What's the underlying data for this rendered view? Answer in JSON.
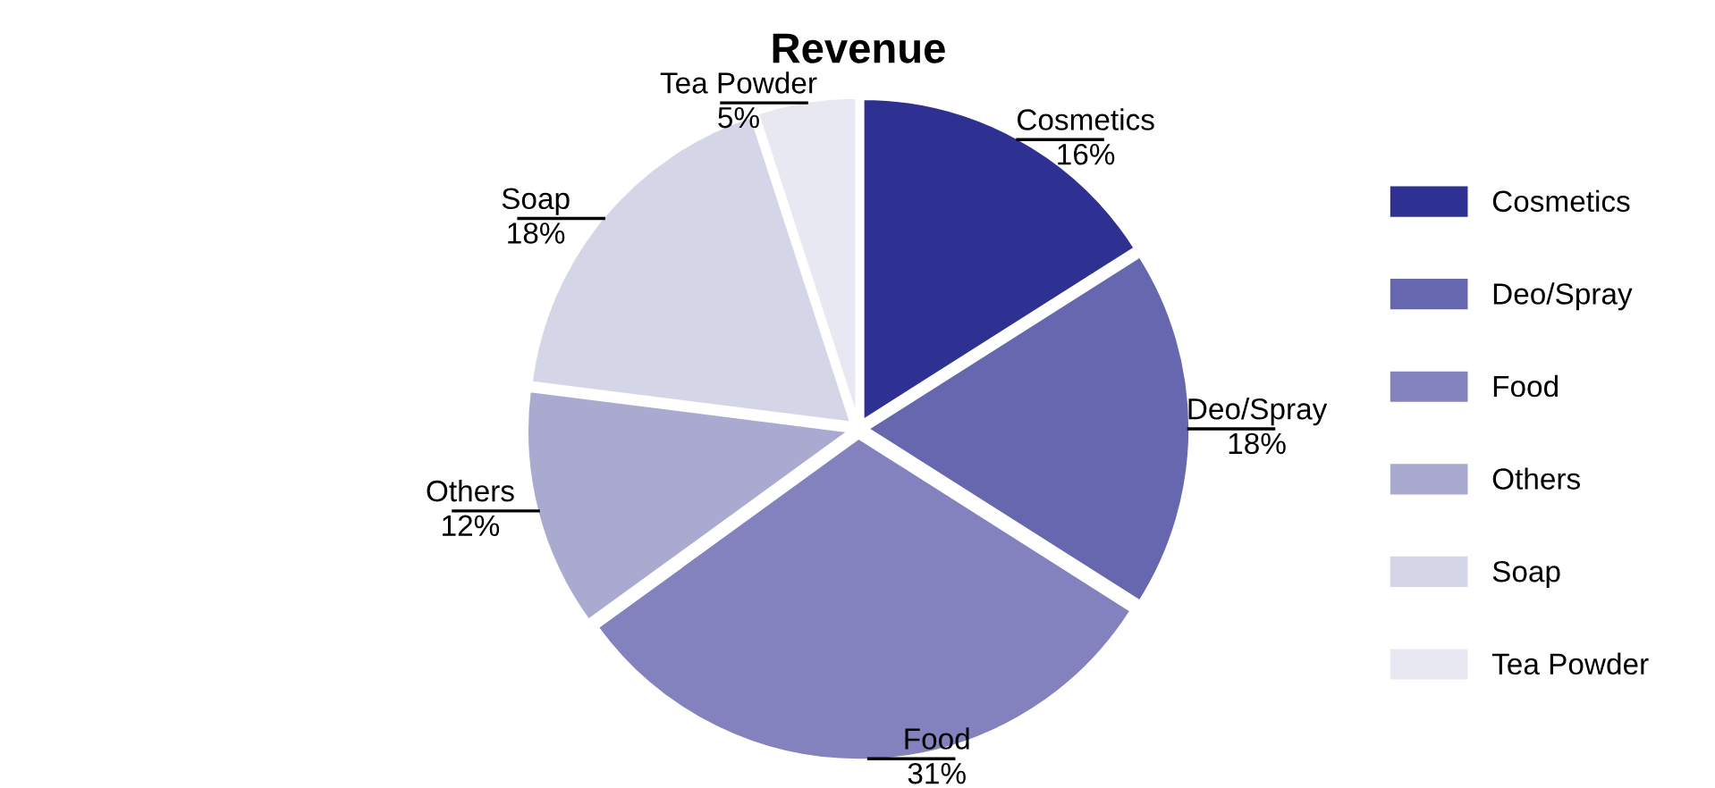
{
  "chart_data": {
    "type": "pie",
    "title": "Revenue",
    "categories": [
      "Cosmetics",
      "Deo/Spray",
      "Food",
      "Others",
      "Soap",
      "Tea Powder"
    ],
    "values": [
      16,
      18,
      31,
      12,
      18,
      5
    ],
    "value_labels": [
      "16%",
      "18%",
      "31%",
      "12%",
      "18%",
      "5%"
    ],
    "colors": [
      "#2e3192",
      "#6667ae",
      "#8482be",
      "#aaaad0",
      "#d5d5e8",
      "#e8e8f3"
    ],
    "legend": "right"
  }
}
